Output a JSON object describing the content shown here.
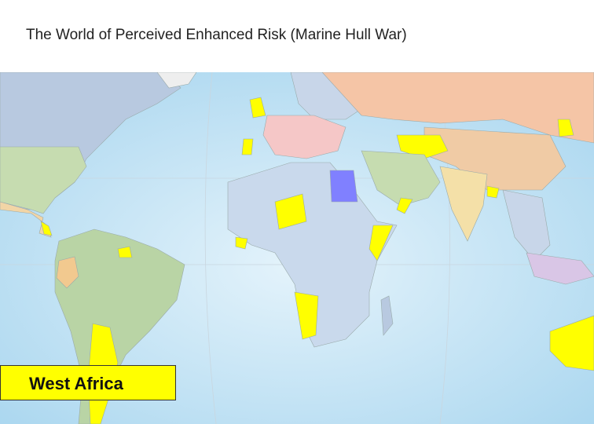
{
  "title": "The World of Perceived Enhanced Risk (Marine Hull War)",
  "label": "West Africa"
}
